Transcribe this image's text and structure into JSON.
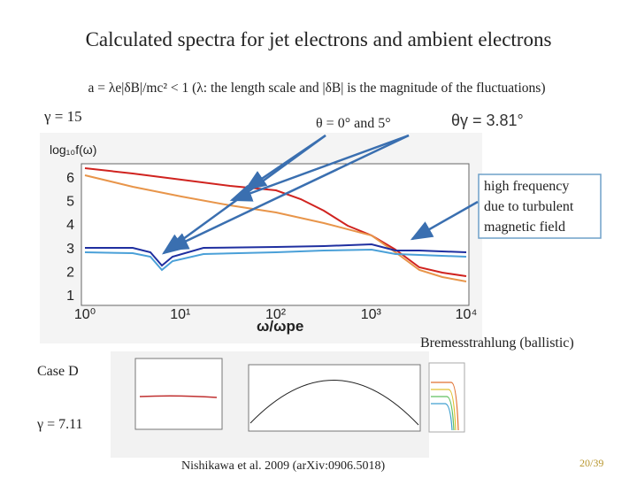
{
  "title": "Calculated spectra for jet electrons and ambient electrons",
  "subtitle": "a = λe|δB|/mc² < 1 (λ: the length scale and |δB| is the magnitude of the fluctuations)",
  "gamma_top": "γ = 15",
  "theta_label": "θ = 0°   and 5°",
  "theta_gamma": "θγ = 3.81°",
  "figure": {
    "y_label": "log₁₀f(ω)",
    "yticks": [
      "1",
      "2",
      "3",
      "4",
      "5",
      "6"
    ],
    "xticks": [
      "10⁰",
      "10¹",
      "10²",
      "10³",
      "10⁴"
    ],
    "x_label": "ω/ωpe"
  },
  "callout": [
    "high frequency",
    "due to turbulent",
    "magnetic field"
  ],
  "bremsstrahlung": "Bremesstrahlung  (ballistic)",
  "case": "Case D",
  "gamma_bottom": "γ = 7.11",
  "citation": "Nishikawa et al. 2009 (arXiv:0906.5018)",
  "page": "20/39"
}
